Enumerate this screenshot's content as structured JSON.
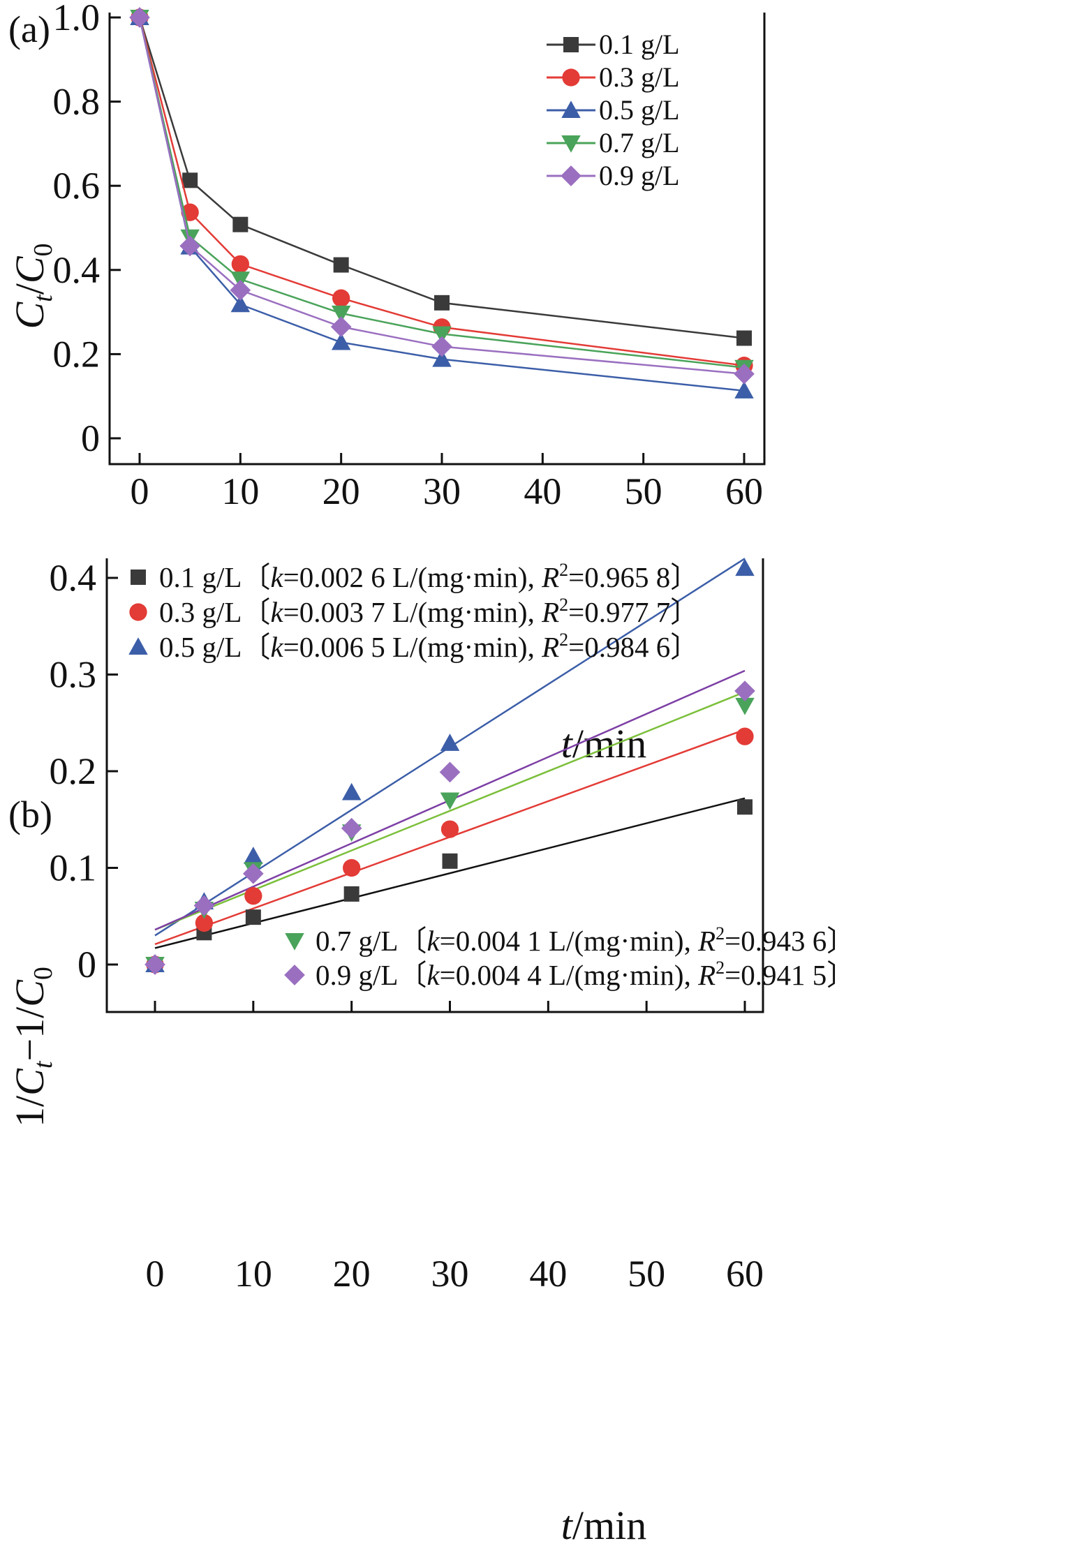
{
  "chart_data": [
    {
      "type": "line",
      "panel_label": "(a)",
      "xlabel": "t/min",
      "ylabel": "Ct/C0",
      "x_categories": [
        "0",
        "10",
        "20",
        "30",
        "40",
        "50",
        "60"
      ],
      "x_tick_values": [
        0,
        10,
        20,
        30,
        40,
        50,
        60
      ],
      "y_ticks": [
        "0",
        "0.2",
        "0.4",
        "0.6",
        "0.8",
        "1.0"
      ],
      "y_tick_values": [
        0,
        0.2,
        0.4,
        0.6,
        0.8,
        1.0
      ],
      "xlim": [
        -3,
        63
      ],
      "ylim": [
        -0.06,
        1.0
      ],
      "x": [
        0,
        5,
        10,
        20,
        30,
        60
      ],
      "grid": false,
      "legend_position": "top-right",
      "series": [
        {
          "name": "0.1 g/L",
          "color": "#3a3a3a",
          "marker": "square",
          "values": [
            1.0,
            0.613,
            0.508,
            0.412,
            0.322,
            0.238
          ]
        },
        {
          "name": "0.3 g/L",
          "color": "#e33b36",
          "marker": "circle",
          "values": [
            1.0,
            0.537,
            0.414,
            0.333,
            0.264,
            0.173
          ]
        },
        {
          "name": "0.5 g/L",
          "color": "#3c5ea8",
          "marker": "triangle-up",
          "values": [
            1.0,
            0.455,
            0.318,
            0.228,
            0.188,
            0.113
          ]
        },
        {
          "name": "0.7 g/L",
          "color": "#4aa35a",
          "marker": "triangle-down",
          "values": [
            1.0,
            0.478,
            0.378,
            0.297,
            0.248,
            0.168
          ]
        },
        {
          "name": "0.9 g/L",
          "color": "#9a6fc0",
          "marker": "diamond",
          "values": [
            1.0,
            0.457,
            0.352,
            0.265,
            0.218,
            0.153
          ]
        }
      ]
    },
    {
      "type": "scatter",
      "panel_label": "(b)",
      "xlabel": "t/min",
      "ylabel": "1/Ct−1/C0",
      "x_categories": [
        "0",
        "10",
        "20",
        "30",
        "40",
        "50",
        "60"
      ],
      "x_tick_values": [
        0,
        10,
        20,
        30,
        40,
        50,
        60
      ],
      "y_ticks": [
        "0",
        "0.1",
        "0.2",
        "0.3",
        "0.4"
      ],
      "y_tick_values": [
        0,
        0.1,
        0.2,
        0.3,
        0.4
      ],
      "xlim": [
        -5,
        65
      ],
      "ylim": [
        -0.05,
        0.425
      ],
      "x": [
        0,
        5,
        10,
        20,
        30,
        60
      ],
      "grid": false,
      "legend_position": "top-left / bottom-right",
      "series": [
        {
          "name": "0.1 g/L",
          "k": "0.002 6",
          "r2": "0.965 8",
          "color": "#3a3a3a",
          "line_color": "#111111",
          "marker": "square",
          "values": [
            0.0,
            0.033,
            0.049,
            0.073,
            0.107,
            0.163
          ],
          "fit": [
            0.017,
            0.172
          ]
        },
        {
          "name": "0.3 g/L",
          "k": "0.003 7",
          "r2": "0.977 7",
          "color": "#e33b36",
          "line_color": "#e33b36",
          "marker": "circle",
          "values": [
            0.0,
            0.043,
            0.071,
            0.1,
            0.14,
            0.236
          ],
          "fit": [
            0.021,
            0.243
          ]
        },
        {
          "name": "0.5 g/L",
          "k": "0.006 5",
          "r2": "0.984 6",
          "color": "#3c5ea8",
          "line_color": "#3c5ea8",
          "marker": "triangle-up",
          "values": [
            0.0,
            0.065,
            0.112,
            0.178,
            0.229,
            0.41
          ],
          "fit": [
            0.03,
            0.42
          ]
        },
        {
          "name": "0.7 g/L",
          "k": "0.004 1",
          "r2": "0.943 6",
          "color": "#4aa35a",
          "line_color": "#7bbf3a",
          "marker": "triangle-down",
          "values": [
            0.0,
            0.057,
            0.098,
            0.137,
            0.17,
            0.268
          ],
          "fit": [
            0.036,
            0.282
          ]
        },
        {
          "name": "0.9 g/L",
          "k": "0.004 4",
          "r2": "0.941 5",
          "color": "#9a6fc0",
          "line_color": "#7d3fa5",
          "marker": "diamond",
          "values": [
            0.0,
            0.061,
            0.094,
            0.141,
            0.199,
            0.283
          ],
          "fit": [
            0.036,
            0.304
          ]
        }
      ]
    }
  ]
}
